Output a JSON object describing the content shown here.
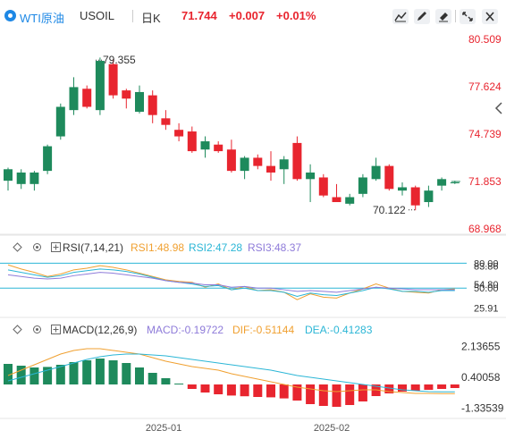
{
  "header": {
    "symbol_name": "WTI原油",
    "symbol_code": "USOIL",
    "period": "日K",
    "price": "71.744",
    "change": "+0.007",
    "change_pct": "+0.01%",
    "colors": {
      "up": "#e8252f",
      "down": "#1e8a5c",
      "accent": "#1e88e5"
    }
  },
  "chart_data": [
    {
      "type": "candlestick",
      "price_axis_labels": [
        "80.509",
        "77.624",
        "74.739",
        "71.853",
        "68.968"
      ],
      "ylim": [
        68.968,
        80.509
      ],
      "current_price_label": "71.853",
      "annotations": [
        {
          "text": "79.355",
          "value": 79.355
        },
        {
          "text": "70.122",
          "value": 70.122
        }
      ],
      "x_tick_labels": [
        "2025-01",
        "2025-02"
      ],
      "candles": [
        {
          "o": 71.9,
          "h": 72.7,
          "l": 71.3,
          "c": 72.6
        },
        {
          "o": 71.7,
          "h": 72.6,
          "l": 71.4,
          "c": 72.4
        },
        {
          "o": 71.7,
          "h": 72.5,
          "l": 71.3,
          "c": 72.4
        },
        {
          "o": 72.5,
          "h": 74.1,
          "l": 72.3,
          "c": 74.0
        },
        {
          "o": 74.6,
          "h": 76.6,
          "l": 74.4,
          "c": 76.4
        },
        {
          "o": 76.2,
          "h": 78.2,
          "l": 75.9,
          "c": 77.6
        },
        {
          "o": 77.5,
          "h": 77.7,
          "l": 76.3,
          "c": 76.4
        },
        {
          "o": 76.2,
          "h": 79.4,
          "l": 75.9,
          "c": 79.2
        },
        {
          "o": 79.0,
          "h": 79.3,
          "l": 76.9,
          "c": 77.1
        },
        {
          "o": 77.4,
          "h": 77.5,
          "l": 76.3,
          "c": 76.9
        },
        {
          "o": 76.1,
          "h": 77.7,
          "l": 76.0,
          "c": 77.3
        },
        {
          "o": 77.1,
          "h": 77.4,
          "l": 75.4,
          "c": 75.9
        },
        {
          "o": 75.7,
          "h": 76.2,
          "l": 75.0,
          "c": 75.3
        },
        {
          "o": 75.0,
          "h": 75.4,
          "l": 74.3,
          "c": 74.6
        },
        {
          "o": 74.9,
          "h": 75.2,
          "l": 73.6,
          "c": 73.7
        },
        {
          "o": 73.8,
          "h": 74.6,
          "l": 73.3,
          "c": 74.3
        },
        {
          "o": 74.1,
          "h": 74.3,
          "l": 73.6,
          "c": 73.7
        },
        {
          "o": 73.8,
          "h": 74.4,
          "l": 72.4,
          "c": 72.5
        },
        {
          "o": 72.5,
          "h": 73.4,
          "l": 72.0,
          "c": 73.3
        },
        {
          "o": 73.3,
          "h": 73.5,
          "l": 72.6,
          "c": 72.8
        },
        {
          "o": 72.8,
          "h": 73.7,
          "l": 71.9,
          "c": 72.4
        },
        {
          "o": 72.6,
          "h": 73.4,
          "l": 71.7,
          "c": 73.2
        },
        {
          "o": 74.2,
          "h": 74.6,
          "l": 71.9,
          "c": 72.0
        },
        {
          "o": 72.0,
          "h": 72.9,
          "l": 70.6,
          "c": 72.4
        },
        {
          "o": 72.1,
          "h": 72.3,
          "l": 70.9,
          "c": 71.0
        },
        {
          "o": 70.9,
          "h": 71.7,
          "l": 70.6,
          "c": 70.6
        },
        {
          "o": 70.5,
          "h": 71.1,
          "l": 70.4,
          "c": 70.9
        },
        {
          "o": 71.1,
          "h": 72.3,
          "l": 70.9,
          "c": 72.1
        },
        {
          "o": 72.0,
          "h": 73.3,
          "l": 71.9,
          "c": 72.8
        },
        {
          "o": 72.8,
          "h": 72.9,
          "l": 71.3,
          "c": 71.4
        },
        {
          "o": 71.3,
          "h": 71.8,
          "l": 71.0,
          "c": 71.5
        },
        {
          "o": 71.5,
          "h": 71.6,
          "l": 70.1,
          "c": 70.4
        },
        {
          "o": 70.6,
          "h": 71.6,
          "l": 70.3,
          "c": 71.3
        },
        {
          "o": 71.6,
          "h": 72.1,
          "l": 71.3,
          "c": 72.0
        },
        {
          "o": 71.8,
          "h": 71.9,
          "l": 71.7,
          "c": 71.8
        }
      ]
    },
    {
      "type": "line",
      "indicator": "RSI",
      "label": "RSI(7,14,21)",
      "axis_labels": [
        "80.00",
        "83.86",
        "54.80",
        "50.00",
        "25.91"
      ],
      "levels": [
        80,
        50
      ],
      "ylim": [
        20,
        88
      ],
      "series": [
        {
          "name": "RSI1:48.98",
          "color": "#f0a030",
          "values": [
            78,
            73,
            69,
            64,
            67,
            72,
            74,
            77,
            75,
            72,
            68,
            64,
            60,
            58,
            57,
            51,
            55,
            48,
            52,
            47,
            48,
            45,
            36,
            43,
            39,
            38,
            44,
            49,
            55,
            50,
            46,
            45,
            44,
            48,
            49
          ]
        },
        {
          "name": "RSI2:47.28",
          "color": "#2bb6d6",
          "values": [
            72,
            69,
            66,
            63,
            65,
            69,
            71,
            73,
            72,
            70,
            67,
            63,
            59,
            57,
            55,
            52,
            53,
            48,
            50,
            47,
            47,
            45,
            40,
            44,
            42,
            41,
            44,
            47,
            51,
            49,
            46,
            46,
            45,
            47,
            47
          ]
        },
        {
          "name": "RSI3:48.37",
          "color": "#8e7bd9",
          "values": [
            66,
            64,
            62,
            61,
            62,
            65,
            67,
            69,
            68,
            66,
            64,
            62,
            59,
            57,
            56,
            54,
            54,
            51,
            52,
            50,
            50,
            48,
            46,
            47,
            46,
            45,
            47,
            49,
            51,
            50,
            49,
            48,
            48,
            48,
            48
          ]
        }
      ]
    },
    {
      "type": "bar",
      "indicator": "MACD",
      "label": "MACD(12,26,9)",
      "axis_labels": [
        "2.13655",
        "0.40058",
        "-1.33539"
      ],
      "ylim": [
        -1.6,
        2.4
      ],
      "series": [
        {
          "name": "MACD:-0.19722",
          "color_up": "#1e8a5c",
          "color_down": "#e8252f",
          "values": [
            1.15,
            1.05,
            0.95,
            0.98,
            1.1,
            1.25,
            1.35,
            1.45,
            1.35,
            1.2,
            0.95,
            0.65,
            0.35,
            0.05,
            -0.25,
            -0.45,
            -0.55,
            -0.62,
            -0.66,
            -0.7,
            -0.72,
            -0.78,
            -0.9,
            -1.1,
            -1.2,
            -1.25,
            -1.15,
            -0.95,
            -0.65,
            -0.5,
            -0.4,
            -0.35,
            -0.3,
            -0.25,
            -0.2
          ]
        },
        {
          "name": "DIF:-0.51144",
          "color": "#f0a030",
          "values": [
            0.5,
            0.8,
            1.1,
            1.4,
            1.7,
            1.9,
            2.0,
            2.0,
            1.9,
            1.8,
            1.7,
            1.5,
            1.3,
            1.15,
            1.0,
            0.9,
            0.8,
            0.6,
            0.45,
            0.3,
            0.15,
            0.0,
            -0.15,
            -0.25,
            -0.35,
            -0.4,
            -0.35,
            -0.3,
            -0.3,
            -0.4,
            -0.45,
            -0.5,
            -0.5,
            -0.51,
            -0.51
          ]
        },
        {
          "name": "DEA:-0.41283",
          "color": "#2bb6d6",
          "values": [
            0.2,
            0.4,
            0.6,
            0.8,
            1.0,
            1.2,
            1.4,
            1.55,
            1.65,
            1.7,
            1.7,
            1.65,
            1.6,
            1.5,
            1.4,
            1.3,
            1.2,
            1.1,
            1.0,
            0.9,
            0.8,
            0.65,
            0.5,
            0.4,
            0.3,
            0.2,
            0.1,
            0.0,
            -0.1,
            -0.2,
            -0.3,
            -0.35,
            -0.4,
            -0.41,
            -0.41
          ]
        }
      ]
    }
  ]
}
